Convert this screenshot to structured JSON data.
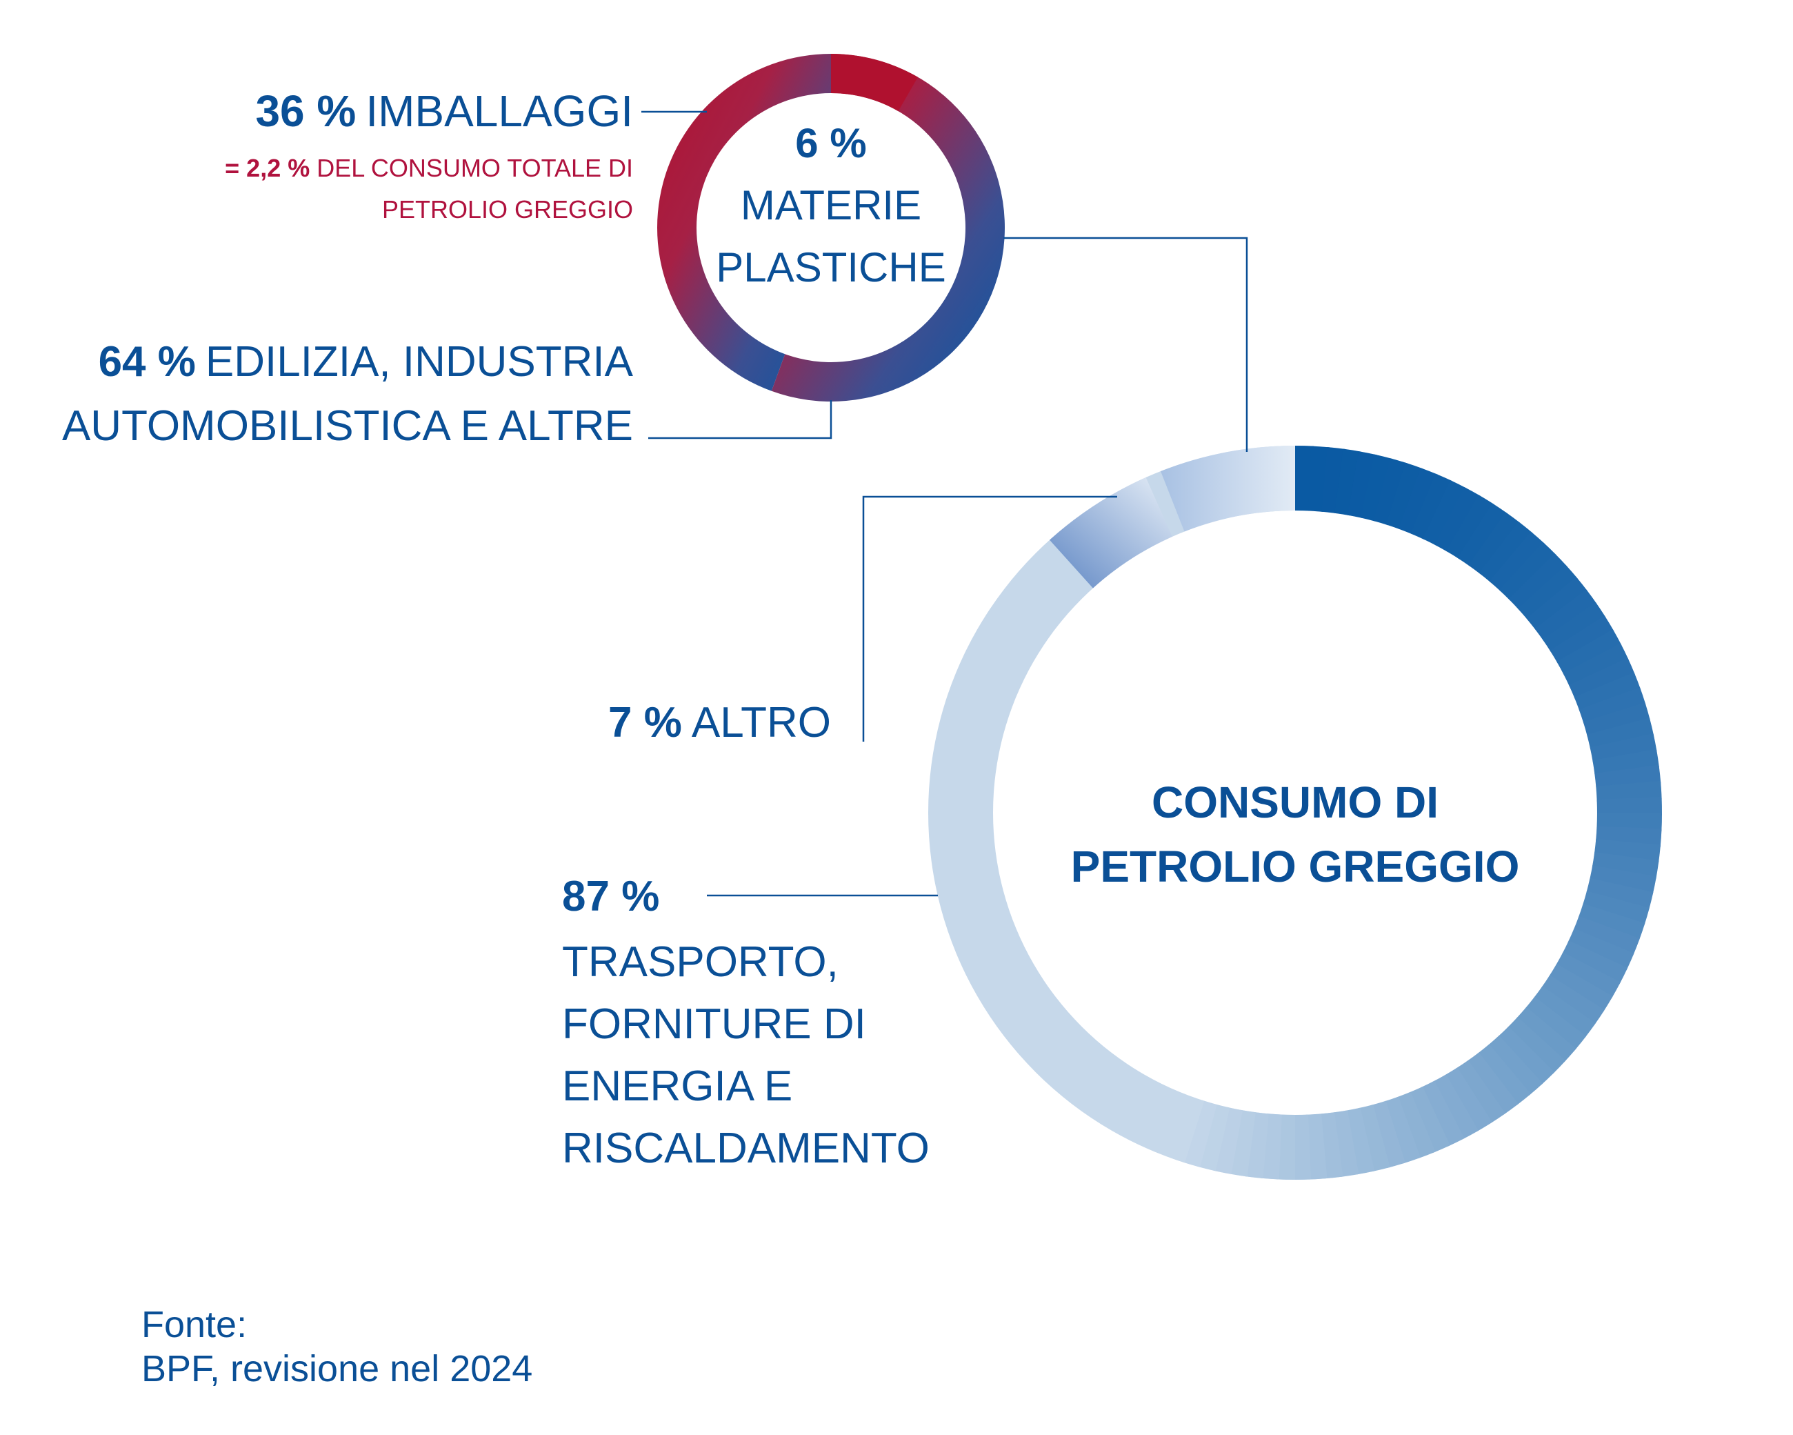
{
  "colors": {
    "text_blue": "#0a4f96",
    "text_red": "#b0123e",
    "big_ring_light": "#c6d8ea",
    "big_ring_dark": "#0a5aa3",
    "small_ring_red": "#b0112f",
    "small_ring_blue": "#0a56a2"
  },
  "chart_data": [
    {
      "type": "pie",
      "title": "CONSUMO DI PETROLIO GREGGIO",
      "title_lines": [
        "CONSUMO DI",
        "PETROLIO GREGGIO"
      ],
      "slices": [
        {
          "name": "materie plastiche",
          "value": 6,
          "color": "#0a5aa3"
        },
        {
          "name": "trasporto",
          "value": 87,
          "color": "#c6d8ea"
        },
        {
          "name": "altro",
          "value": 7,
          "color": "#8eaed6"
        }
      ],
      "labels": {
        "trasporto": {
          "pct": "87 %",
          "lines": [
            "TRASPORTO,",
            "FORNITURE DI",
            "ENERGIA E",
            "RISCALDAMENTO"
          ]
        },
        "altro": {
          "pct": "7 %",
          "text": "ALTRO"
        }
      }
    },
    {
      "type": "pie",
      "title": "6 % MATERIE PLASTICHE",
      "title_lines": [
        "6 %",
        "MATERIE",
        "PLASTICHE"
      ],
      "slices": [
        {
          "name": "imballaggi",
          "value": 36,
          "color": "#b0112f"
        },
        {
          "name": "edilizia",
          "value": 64,
          "color": "#0a56a2"
        }
      ],
      "labels": {
        "imballaggi": {
          "pct": "36 %",
          "text": "IMBALLAGGI",
          "note_pct": "= 2,2 %",
          "note_lines": [
            "DEL CONSUMO TOTALE DI",
            "PETROLIO GREGGIO"
          ]
        },
        "edilizia": {
          "pct": "64 %",
          "lines": [
            "EDILIZIA, INDUSTRIA",
            "AUTOMOBILISTICA E ALTRE"
          ]
        }
      }
    }
  ],
  "source": {
    "label": "Fonte:",
    "text": "BPF, revisione nel 2024"
  }
}
